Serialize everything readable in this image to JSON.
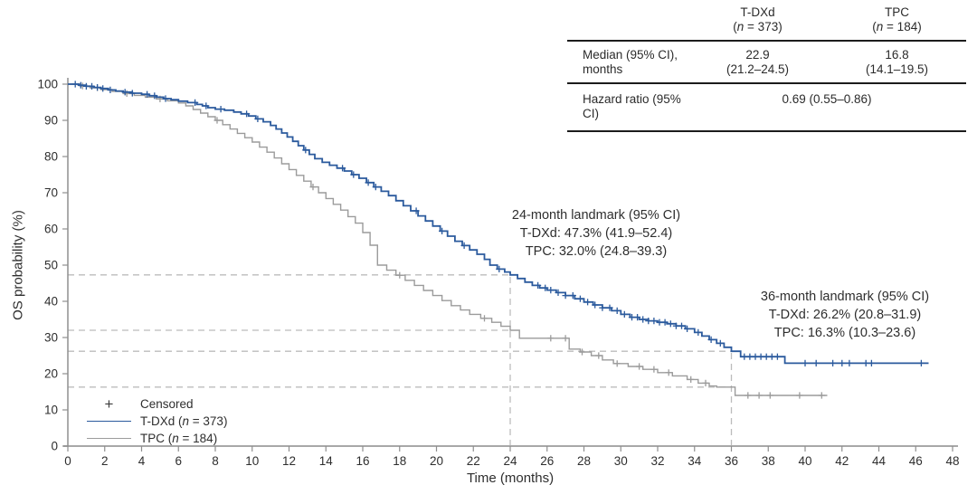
{
  "colors": {
    "tdxd": "#2b5a9d",
    "tpc": "#9b9b9b",
    "dash_line": "#bcbcbc",
    "axis_line": "#a8a8a8",
    "tick_line": "#8f8f8f",
    "text": "#2e2e2e",
    "table_rule": "#1c1c1c",
    "censored_glyph": "#3d3d3d"
  },
  "table": {
    "col_headers": [
      {
        "name": "T-DXd",
        "n_open": "(",
        "n_var": "n",
        "n_rest": " = 373)"
      },
      {
        "name": "TPC",
        "n_open": "(",
        "n_var": "n",
        "n_rest": " = 184)"
      }
    ],
    "rows": {
      "median": {
        "label_line1": "Median (95% CI),",
        "label_line2": "months",
        "tdxd_value": "22.9",
        "tdxd_ci": "(21.2–24.5)",
        "tpc_value": "16.8",
        "tpc_ci": "(14.1–19.5)"
      },
      "hazard": {
        "label": "Hazard ratio (95% CI)",
        "value": "0.69 (0.55–0.86)"
      }
    }
  },
  "annotations": {
    "landmark24": {
      "title": "24-month landmark (95% CI)",
      "tdxd": "T-DXd: 47.3% (41.9–52.4)",
      "tpc": "TPC: 32.0% (24.8–39.3)"
    },
    "landmark36": {
      "title": "36-month landmark (95% CI)",
      "tdxd": "T-DXd: 26.2% (20.8–31.9)",
      "tpc": "TPC: 16.3% (10.3–23.6)"
    }
  },
  "legend": {
    "censored": {
      "symbol": "+",
      "label": "Censored"
    },
    "tdxd": {
      "name": "T-DXd ",
      "n_open": "(",
      "n_var": "n",
      "n_rest": " = 373)"
    },
    "tpc": {
      "name": "TPC ",
      "n_open": "(",
      "n_var": "n",
      "n_rest": " = 184)"
    }
  },
  "axes": {
    "x_label": "Time (months)",
    "y_label": "OS probability (%)",
    "x_ticks": [
      0,
      2,
      4,
      6,
      8,
      10,
      12,
      14,
      16,
      18,
      20,
      22,
      24,
      26,
      28,
      30,
      32,
      34,
      36,
      38,
      40,
      42,
      44,
      46,
      48
    ],
    "y_ticks": [
      0,
      10,
      20,
      30,
      40,
      50,
      60,
      70,
      80,
      90,
      100
    ]
  },
  "chart_data": {
    "type": "line",
    "subtype": "kaplan-meier-step",
    "title": "",
    "xlabel": "Time (months)",
    "ylabel": "OS probability (%)",
    "xlim": [
      0,
      48
    ],
    "ylim": [
      0,
      100
    ],
    "grid": false,
    "legend_position": "lower-left",
    "medians_months": {
      "tdxd": "22.9 (21.2–24.5)",
      "tpc": "16.8 (14.1–19.5)"
    },
    "hazard_ratio": "0.69 (0.55–0.86)",
    "landmarks": {
      "month24": {
        "tdxd_pct": 47.3,
        "tdxd_ci": "41.9–52.4",
        "tpc_pct": 32.0,
        "tpc_ci": "24.8–39.3"
      },
      "month36": {
        "tdxd_pct": 26.2,
        "tdxd_ci": "20.8–31.9",
        "tpc_pct": 16.3,
        "tpc_ci": "10.3–23.6"
      }
    },
    "reference_lines": [
      {
        "type": "h",
        "p": 47.3,
        "t_end": 24
      },
      {
        "type": "h",
        "p": 32.0,
        "t_end": 24
      },
      {
        "type": "h",
        "p": 26.2,
        "t_end": 36
      },
      {
        "type": "h",
        "p": 16.3,
        "t_end": 36
      },
      {
        "type": "v",
        "t": 24,
        "p_top": 47.3
      },
      {
        "type": "v",
        "t": 36,
        "p_top": 26.2
      }
    ],
    "series": [
      {
        "name": "T-DXd (n = 373)",
        "color": "#2b5a9d",
        "n": 373,
        "points": [
          [
            0,
            100
          ],
          [
            0.6,
            99.7
          ],
          [
            1.0,
            99.4
          ],
          [
            1.4,
            99.1
          ],
          [
            1.8,
            98.8
          ],
          [
            2.2,
            98.4
          ],
          [
            2.6,
            98.1
          ],
          [
            3.0,
            97.8
          ],
          [
            3.5,
            97.5
          ],
          [
            4.0,
            97.2
          ],
          [
            4.4,
            96.8
          ],
          [
            4.8,
            96.4
          ],
          [
            5.2,
            96.0
          ],
          [
            5.6,
            95.7
          ],
          [
            6.0,
            95.3
          ],
          [
            6.5,
            94.9
          ],
          [
            7.0,
            94.4
          ],
          [
            7.3,
            94.0
          ],
          [
            7.6,
            93.5
          ],
          [
            8.0,
            93.1
          ],
          [
            8.5,
            92.8
          ],
          [
            9.0,
            92.3
          ],
          [
            9.4,
            91.8
          ],
          [
            9.8,
            91.2
          ],
          [
            10.2,
            90.4
          ],
          [
            10.6,
            89.6
          ],
          [
            11.0,
            88.6
          ],
          [
            11.3,
            87.6
          ],
          [
            11.6,
            86.5
          ],
          [
            11.9,
            85.4
          ],
          [
            12.2,
            84.2
          ],
          [
            12.5,
            83.0
          ],
          [
            12.8,
            81.8
          ],
          [
            13.1,
            80.6
          ],
          [
            13.4,
            79.4
          ],
          [
            13.8,
            78.4
          ],
          [
            14.2,
            77.6
          ],
          [
            14.6,
            76.8
          ],
          [
            15.0,
            76.0
          ],
          [
            15.4,
            75.0
          ],
          [
            15.8,
            74.0
          ],
          [
            16.2,
            72.8
          ],
          [
            16.6,
            71.6
          ],
          [
            17.0,
            70.4
          ],
          [
            17.4,
            69.2
          ],
          [
            17.8,
            67.8
          ],
          [
            18.2,
            66.4
          ],
          [
            18.6,
            65.0
          ],
          [
            19.0,
            63.6
          ],
          [
            19.4,
            62.2
          ],
          [
            19.8,
            60.8
          ],
          [
            20.2,
            59.4
          ],
          [
            20.6,
            58.0
          ],
          [
            21.0,
            56.6
          ],
          [
            21.4,
            55.4
          ],
          [
            21.8,
            54.2
          ],
          [
            22.2,
            53.0
          ],
          [
            22.6,
            51.6
          ],
          [
            22.9,
            50.0
          ],
          [
            23.3,
            48.9
          ],
          [
            23.7,
            48.1
          ],
          [
            24.0,
            47.3
          ],
          [
            24.4,
            46.3
          ],
          [
            24.8,
            45.3
          ],
          [
            25.2,
            44.4
          ],
          [
            25.6,
            43.7
          ],
          [
            26.0,
            43.1
          ],
          [
            26.5,
            42.4
          ],
          [
            27.0,
            41.6
          ],
          [
            27.5,
            40.7
          ],
          [
            28.0,
            39.8
          ],
          [
            28.5,
            39.0
          ],
          [
            29.0,
            38.2
          ],
          [
            29.5,
            37.4
          ],
          [
            30.0,
            36.4
          ],
          [
            30.5,
            35.6
          ],
          [
            31.0,
            35.0
          ],
          [
            31.5,
            34.6
          ],
          [
            32.0,
            34.2
          ],
          [
            32.5,
            33.8
          ],
          [
            33.0,
            33.2
          ],
          [
            33.5,
            32.4
          ],
          [
            34.0,
            31.4
          ],
          [
            34.4,
            30.4
          ],
          [
            34.8,
            29.4
          ],
          [
            35.2,
            28.4
          ],
          [
            35.6,
            27.3
          ],
          [
            36.0,
            26.2
          ],
          [
            36.5,
            24.7
          ],
          [
            38.9,
            22.9
          ],
          [
            46.7,
            22.9
          ]
        ],
        "censor_marks": [
          0.4,
          0.7,
          1.0,
          1.3,
          1.6,
          1.9,
          2.3,
          3.1,
          3.5,
          4.3,
          4.7,
          5.3,
          6.9,
          7.5,
          8.3,
          9.7,
          10.3,
          12.9,
          14.9,
          15.5,
          16.3,
          16.7,
          18.9,
          20.3,
          21.5,
          23.4,
          25.5,
          25.9,
          26.2,
          26.6,
          27.0,
          27.4,
          27.8,
          28.2,
          28.6,
          29.0,
          29.4,
          29.8,
          30.2,
          30.6,
          30.9,
          31.2,
          31.5,
          31.8,
          32.1,
          32.4,
          32.7,
          33.0,
          33.3,
          33.6,
          34.2,
          34.9,
          35.4,
          36.7,
          37.0,
          37.3,
          37.6,
          37.9,
          38.2,
          38.5,
          40.0,
          40.6,
          41.5,
          42.0,
          42.4,
          43.3,
          43.6,
          46.3
        ]
      },
      {
        "name": "TPC (n = 184)",
        "color": "#9b9b9b",
        "n": 184,
        "points": [
          [
            0,
            100
          ],
          [
            0.7,
            99.5
          ],
          [
            1.2,
            99.0
          ],
          [
            1.8,
            98.5
          ],
          [
            2.4,
            98.0
          ],
          [
            3.0,
            97.4
          ],
          [
            3.6,
            96.9
          ],
          [
            4.2,
            96.4
          ],
          [
            4.8,
            95.9
          ],
          [
            5.4,
            95.4
          ],
          [
            6.0,
            94.8
          ],
          [
            6.4,
            94.0
          ],
          [
            6.8,
            93.0
          ],
          [
            7.2,
            92.0
          ],
          [
            7.6,
            91.0
          ],
          [
            8.0,
            90.0
          ],
          [
            8.4,
            88.8
          ],
          [
            8.8,
            87.6
          ],
          [
            9.2,
            86.4
          ],
          [
            9.6,
            85.2
          ],
          [
            10.0,
            84.0
          ],
          [
            10.4,
            82.6
          ],
          [
            10.8,
            81.2
          ],
          [
            11.2,
            79.6
          ],
          [
            11.6,
            78.0
          ],
          [
            12.0,
            76.4
          ],
          [
            12.4,
            74.8
          ],
          [
            12.8,
            73.2
          ],
          [
            13.2,
            71.6
          ],
          [
            13.6,
            70.0
          ],
          [
            14.0,
            68.4
          ],
          [
            14.4,
            66.8
          ],
          [
            14.8,
            65.2
          ],
          [
            15.2,
            63.4
          ],
          [
            15.6,
            61.6
          ],
          [
            16.0,
            59.0
          ],
          [
            16.4,
            55.5
          ],
          [
            16.8,
            50.0
          ],
          [
            17.3,
            48.6
          ],
          [
            17.8,
            47.2
          ],
          [
            18.3,
            45.8
          ],
          [
            18.8,
            44.4
          ],
          [
            19.3,
            43.0
          ],
          [
            19.8,
            41.6
          ],
          [
            20.3,
            40.2
          ],
          [
            20.8,
            38.8
          ],
          [
            21.3,
            37.6
          ],
          [
            21.8,
            36.4
          ],
          [
            22.4,
            35.3
          ],
          [
            23.0,
            34.2
          ],
          [
            23.5,
            33.1
          ],
          [
            24.0,
            32.0
          ],
          [
            24.5,
            29.8
          ],
          [
            27.2,
            26.8
          ],
          [
            27.8,
            26.0
          ],
          [
            28.4,
            25.0
          ],
          [
            29.0,
            23.8
          ],
          [
            29.6,
            22.8
          ],
          [
            30.4,
            22.0
          ],
          [
            31.2,
            21.2
          ],
          [
            32.0,
            20.3
          ],
          [
            32.8,
            19.4
          ],
          [
            33.6,
            18.4
          ],
          [
            34.2,
            17.4
          ],
          [
            34.8,
            16.6
          ],
          [
            35.2,
            16.3
          ],
          [
            36.2,
            14.0
          ],
          [
            41.2,
            14.0
          ]
        ],
        "censor_marks": [
          0.8,
          1.6,
          3.2,
          5.0,
          8.1,
          13.3,
          18.0,
          22.6,
          26.2,
          27.0,
          27.9,
          28.8,
          29.8,
          31.0,
          31.8,
          32.6,
          33.8,
          34.6,
          36.9,
          37.5,
          38.1,
          39.7,
          40.9
        ]
      }
    ]
  }
}
